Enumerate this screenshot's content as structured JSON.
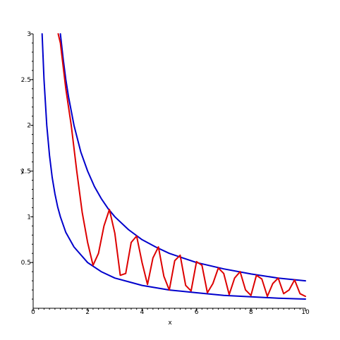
{
  "chart_data": {
    "type": "line",
    "title": "",
    "xlabel": "x",
    "ylabel": "y",
    "xlim": [
      0,
      10
    ],
    "ylim": [
      0,
      3
    ],
    "x_ticks": [
      {
        "value": 0,
        "label": "0"
      },
      {
        "value": 2,
        "label": "2"
      },
      {
        "value": 4,
        "label": "4"
      },
      {
        "value": 6,
        "label": "6"
      },
      {
        "value": 8,
        "label": "8"
      },
      {
        "value": 10,
        "label": "10"
      }
    ],
    "y_ticks": [
      {
        "value": 0.5,
        "label": "0.5"
      },
      {
        "value": 1,
        "label": "1"
      },
      {
        "value": 1.5,
        "label": "1.5"
      },
      {
        "value": 2,
        "label": "2"
      },
      {
        "value": 2.5,
        "label": "2.5"
      },
      {
        "value": 3,
        "label": "3"
      }
    ],
    "series": [
      {
        "color": "#0000cc",
        "x": [
          0.33,
          0.4,
          0.5,
          0.6,
          0.7,
          0.8,
          0.9,
          1.0,
          1.2,
          1.5,
          2.0,
          2.5,
          3.0,
          3.5,
          4.0,
          5.0,
          6.0,
          7.0,
          8.0,
          9.0,
          10.0
        ],
        "y": [
          3.0,
          2.5,
          2.0,
          1.67,
          1.43,
          1.25,
          1.11,
          1.0,
          0.83,
          0.67,
          0.5,
          0.4,
          0.33,
          0.29,
          0.25,
          0.2,
          0.17,
          0.14,
          0.125,
          0.11,
          0.1
        ]
      },
      {
        "color": "#0000cc",
        "x": [
          1.0,
          1.1,
          1.2,
          1.3,
          1.5,
          1.75,
          2.0,
          2.25,
          2.5,
          2.75,
          3.0,
          3.5,
          4.0,
          4.5,
          5.0,
          6.0,
          7.0,
          8.0,
          9.0,
          10.0
        ],
        "y": [
          3.0,
          2.73,
          2.5,
          2.31,
          2.0,
          1.71,
          1.5,
          1.33,
          1.2,
          1.09,
          1.0,
          0.86,
          0.75,
          0.67,
          0.6,
          0.5,
          0.43,
          0.375,
          0.33,
          0.3
        ]
      },
      {
        "color": "#dd0000",
        "x": [
          0.92,
          1.0,
          1.2,
          1.4,
          1.6,
          1.8,
          2.0,
          2.2,
          2.4,
          2.6,
          2.8,
          3.0,
          3.2,
          3.4,
          3.6,
          3.8,
          4.0,
          4.2,
          4.4,
          4.6,
          4.8,
          5.0,
          5.2,
          5.4,
          5.6,
          5.8,
          6.0,
          6.2,
          6.4,
          6.6,
          6.8,
          7.0,
          7.2,
          7.4,
          7.6,
          7.8,
          8.0,
          8.2,
          8.4,
          8.6,
          8.8,
          9.0,
          9.2,
          9.4,
          9.6,
          9.8,
          10.0
        ],
        "y": [
          3.0,
          2.9,
          2.4,
          2.0,
          1.5,
          1.05,
          0.72,
          0.47,
          0.6,
          0.9,
          1.08,
          0.82,
          0.36,
          0.38,
          0.72,
          0.79,
          0.5,
          0.26,
          0.55,
          0.67,
          0.35,
          0.2,
          0.52,
          0.58,
          0.25,
          0.19,
          0.51,
          0.47,
          0.17,
          0.27,
          0.44,
          0.38,
          0.15,
          0.33,
          0.4,
          0.2,
          0.14,
          0.36,
          0.32,
          0.13,
          0.27,
          0.33,
          0.16,
          0.2,
          0.31,
          0.16,
          0.13
        ]
      }
    ]
  }
}
